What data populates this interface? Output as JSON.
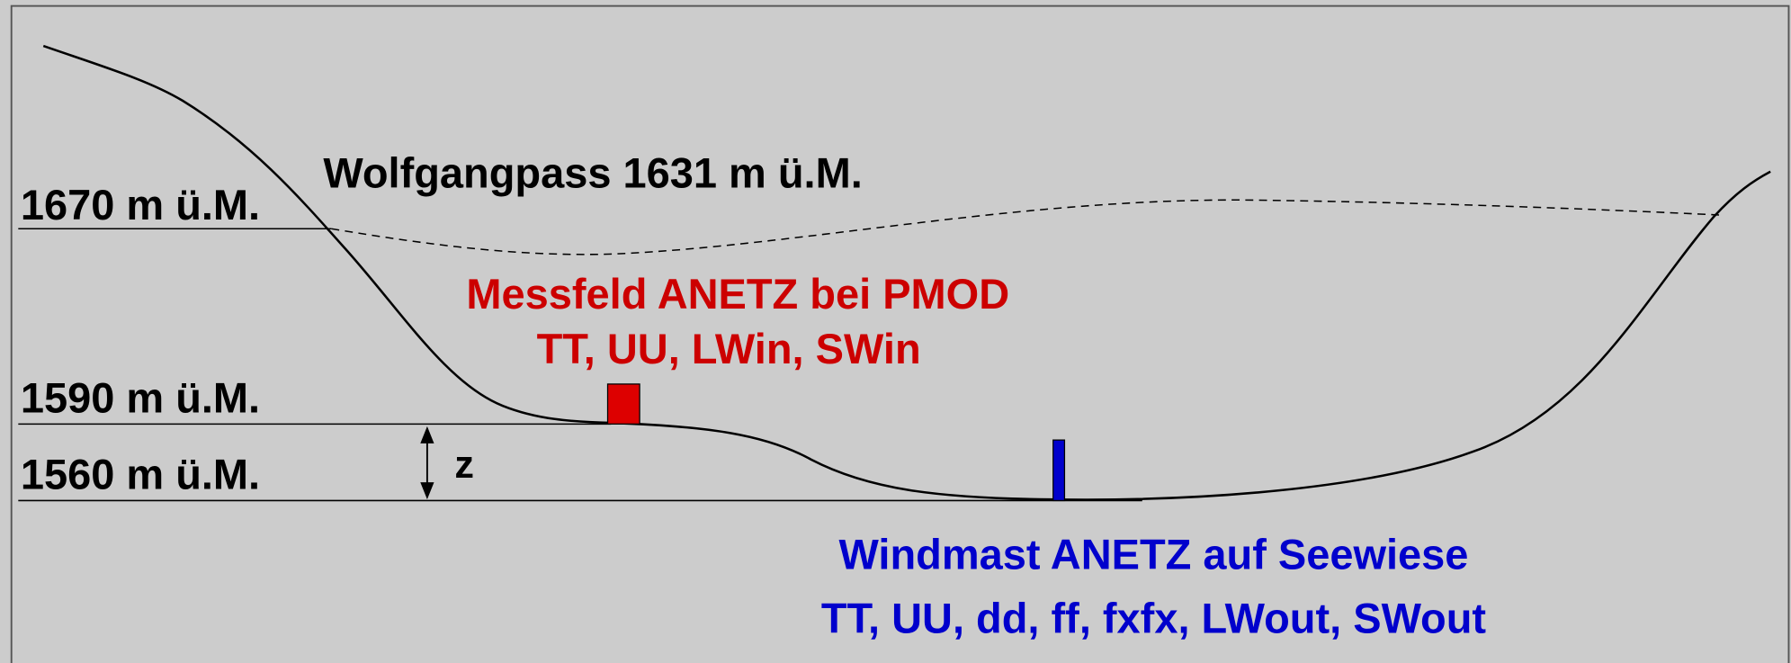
{
  "elevations": [
    "1670 m ü.M.",
    "1590 m ü.M.",
    "1560 m ü.M."
  ],
  "pass_label": "Wolfgangpass 1631 m ü.M.",
  "messfeld": {
    "title": "Messfeld ANETZ bei PMOD",
    "variables": "TT, UU, LWin, SWin"
  },
  "windmast": {
    "title": "Windmast ANETZ auf Seewiese",
    "variables": "TT, UU, dd, ff, fxfx, LWout, SWout"
  },
  "height_symbol": "z"
}
